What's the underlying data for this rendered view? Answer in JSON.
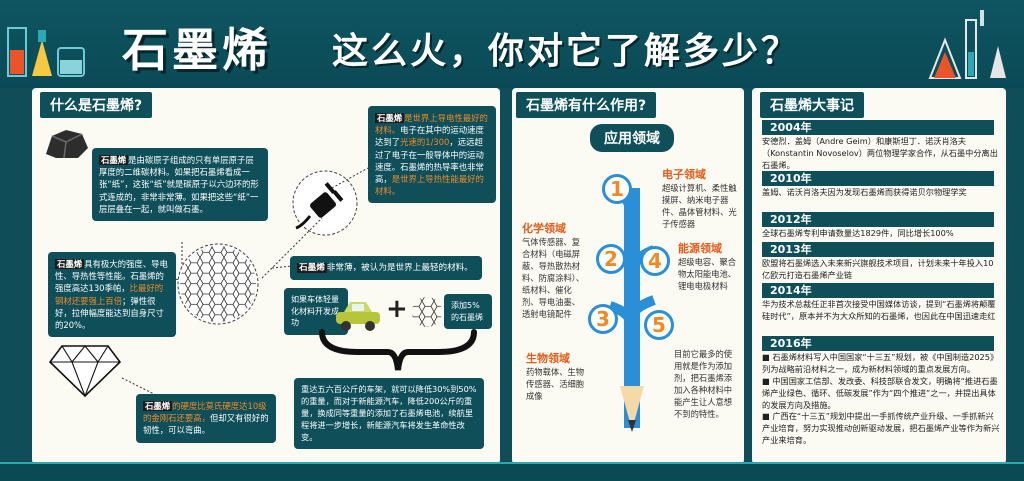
{
  "header": {
    "title_main": "石墨烯",
    "title_sub": "这么火，你对它了解多少？"
  },
  "left": {
    "section_title": "什么是石墨烯?",
    "box1": {
      "label": "石墨烯",
      "text": "是由碳原子组成的只有单层原子层厚度的二维碳材料。如果把石墨烯看成一张“纸”，这张“纸”就是碳原子以六边环的形式连成的，非常非常薄。如果把这些“纸”一层层叠在一起，就叫做石墨。"
    },
    "box2": {
      "label": "石墨烯",
      "text_a": "是世界上导电性最好的材料。",
      "text_b": "电子在其中的运动速度达到了",
      "text_c": "光速的1/300",
      "text_d": "，远远超过了电子在一般导体中的运动速度。石墨烯的热导率也非常高，",
      "text_e": "是世界上导热性能最好的材料。"
    },
    "box3": {
      "label": "石墨烯",
      "text_a": "具有极大的强度、导电性、导热性等性能。石墨烯的强度高达130季帕，",
      "text_b": "比最好的钢材还要强上百倍",
      "text_c": "；弹性很好，拉伸幅度能达到自身尺寸的20%。"
    },
    "box4": {
      "label": "石墨烯",
      "text": "非常薄，被认为是世界上最轻的材料。"
    },
    "box5": {
      "left": "如果车体轻量化材料开发成功",
      "right": "添加5%的石墨烯",
      "plus": "+"
    },
    "box6": {
      "text": "重达五六百公斤的车架，就可以降低30%到50%的重量，而对于新能源汽车，降低200公斤的重量，换成同等重量的添加了石墨烯电池，续航里程将进一步增长，新能源汽车将发生革命性改变。"
    },
    "box7": {
      "label": "石墨烯",
      "text_a": "的硬度比莫氏硬度达10级的金刚石还要高，",
      "text_b": "但却又有很好的韧性，可以弯曲。"
    }
  },
  "mid": {
    "section_title": "石墨烯有什么作用?",
    "app_title": "应用领域",
    "numbers": [
      "1",
      "2",
      "3",
      "4",
      "5"
    ],
    "electronics": {
      "title": "电子领域",
      "body": "超级计算机、柔性触摸屏、纳米电子器件、晶体管材料、光子传感器"
    },
    "chemistry": {
      "title": "化学领域",
      "body": "气体传感器、复合材料（电磁屏蔽、导热散热材料、防腐涂料）、纸材料、催化剂、导电油墨、透射电镜配件"
    },
    "energy": {
      "title": "能源领域",
      "body": "超级电容、聚合物太阳能电池、锂电电极材料"
    },
    "bio": {
      "title": "生物领域",
      "body": "药物载体、生物传感器、活细胞成像"
    },
    "note": "目前它最多的使用就是作为添加剂，把石墨烯添加入各种材料中能产生让人意想不到的特性。"
  },
  "right": {
    "section_title": "石墨烯大事记",
    "events": [
      {
        "year": "2004年",
        "text": "安德烈．盖姆（Andre Geim）和康斯坦丁．诺沃肖洛夫（Konstantin Novoselov）两位物理学家合作，从石墨中分离出石墨烯。"
      },
      {
        "year": "2010年",
        "text": "盖姆、诺沃肖洛夫因为发现石墨烯而获得诺贝尔物理学奖"
      },
      {
        "year": "2012年",
        "text": "全球石墨烯专利申请数量达1829件，同比增长100%"
      },
      {
        "year": "2013年",
        "text": "欧盟将石墨烯选入未来新兴旗舰技术项目，计划未来十年投入10亿欧元打造石墨烯产业链"
      },
      {
        "year": "2014年",
        "text": "华为技术总裁任正非首次接受中国媒体访谈，提到“石墨烯将颠覆硅时代”，原本并不为大众所知的石墨烯，也因此在中国迅速走红"
      }
    ],
    "y2016": {
      "year": "2016年",
      "items": [
        "石墨烯材料写入中国国家“十三五”规划，被《中国制造2025》列为战略前沿材料之一，成为新材料领域的重点发展方向。",
        "中国国家工信部、发改委、科技部联合发文，明确将“推进石墨烯产业绿色、循环、低碳发展”作为“四个推进”之一，并提出具体的发展方向及措施。",
        "广西在“十三五”规划中提出一手抓传统产业升级、一手抓新兴产业培育，努力实现推动创新驱动发展，把石墨烯产业等作为新兴产业来培育。"
      ]
    }
  },
  "colors": {
    "teal": "#0e4f5a",
    "orange": "#f08a24",
    "blue": "#2b8fd8",
    "panel": "#fbfaf3"
  }
}
